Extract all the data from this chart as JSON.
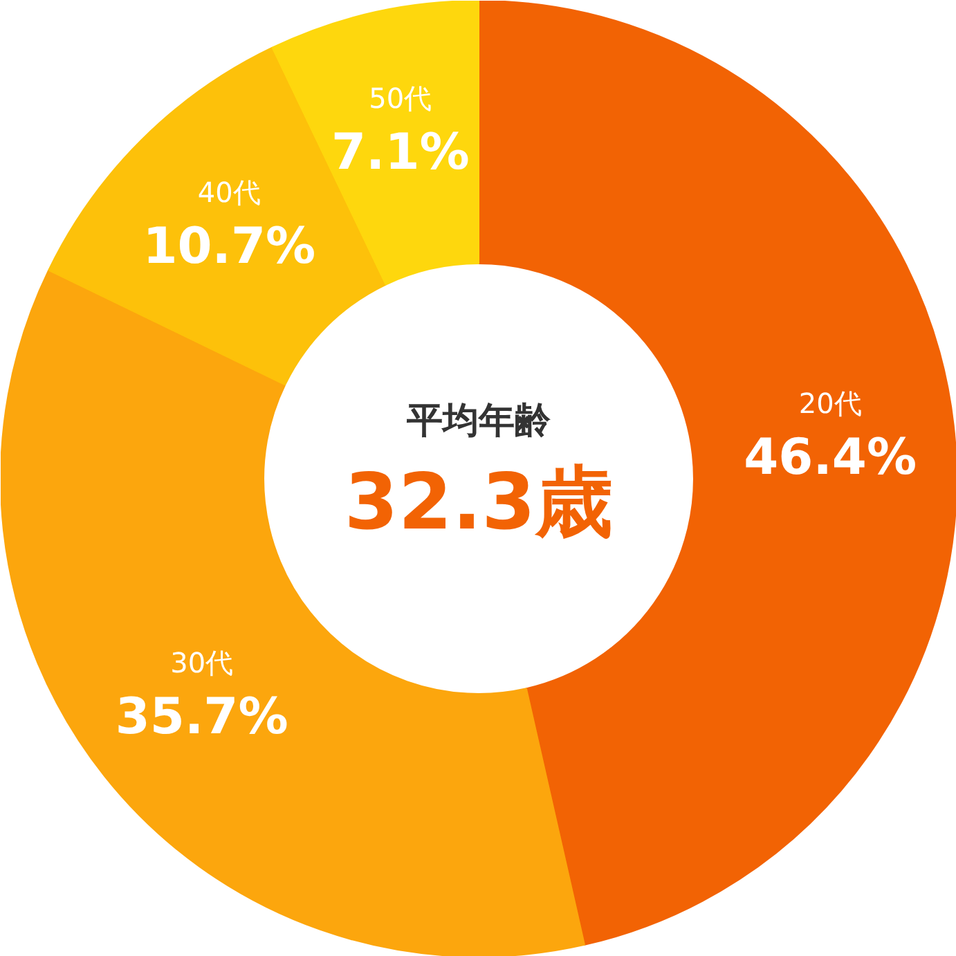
{
  "chart_data": {
    "type": "donut",
    "categories": [
      "20代",
      "30代",
      "40代",
      "50代"
    ],
    "values": [
      46.4,
      35.7,
      10.7,
      7.1
    ],
    "colors": [
      "#f26304",
      "#fca60d",
      "#fdc10a",
      "#fed70d"
    ],
    "value_labels": [
      "46.4%",
      "35.7%",
      "10.7%",
      "7.1%"
    ],
    "annotations": [
      "平均年齢",
      "32.3歳"
    ]
  }
}
